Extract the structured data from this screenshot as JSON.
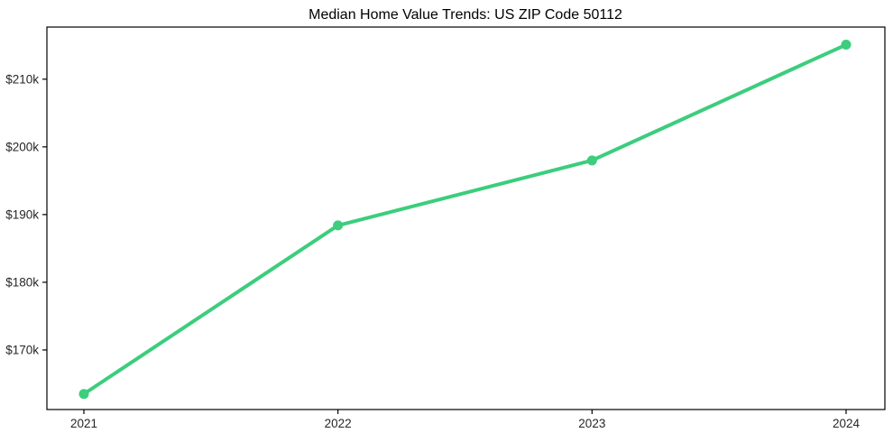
{
  "title": "Median Home Value Trends: US ZIP Code 50112",
  "chart_data": {
    "type": "line",
    "title": "Median Home Value Trends: US ZIP Code 50112",
    "categories": [
      "2021",
      "2022",
      "2023",
      "2024"
    ],
    "series": [
      {
        "name": "Median Home Value",
        "values": [
          163500,
          188400,
          198000,
          215100
        ]
      }
    ],
    "xlabel": "",
    "ylabel": "",
    "y_ticks": [
      170000,
      180000,
      190000,
      200000,
      210000
    ],
    "y_tick_labels": [
      "$170k",
      "$180k",
      "$190k",
      "$200k",
      "$210k"
    ],
    "ylim": [
      161200,
      217700
    ],
    "grid": false,
    "legend": false,
    "line_color": "#3ccd7d",
    "marker_color": "#3ccd7d",
    "axis_color": "#000000",
    "tick_label_color": "#262626",
    "background_color": "#ffffff"
  }
}
